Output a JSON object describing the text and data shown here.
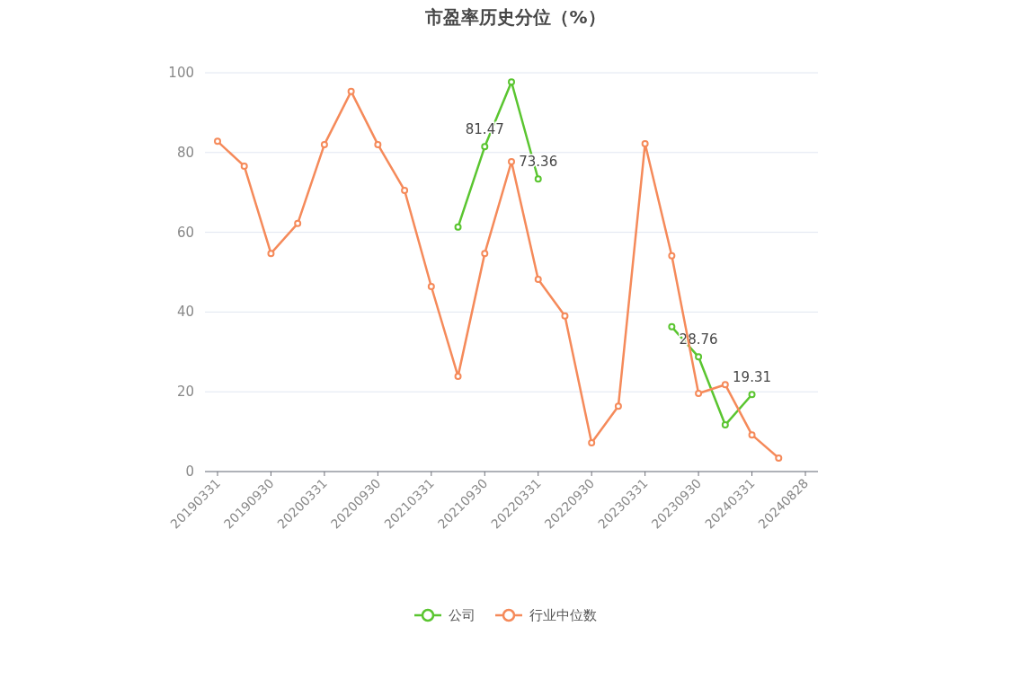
{
  "chart_data": {
    "type": "line",
    "title": "市盈率历史分位（%）",
    "categories": [
      "20190331",
      null,
      "20190930",
      null,
      "20200331",
      null,
      "20200930",
      null,
      "20210331",
      null,
      "20210930",
      null,
      "20220331",
      null,
      "20220930",
      null,
      "20230331",
      null,
      "20230930",
      null,
      "20240331",
      null,
      "20240828"
    ],
    "series": [
      {
        "name": "公司",
        "color": "#5ac530",
        "values": [
          null,
          null,
          null,
          null,
          null,
          null,
          null,
          null,
          null,
          61.3,
          81.47,
          97.7,
          73.36,
          null,
          null,
          null,
          null,
          36.3,
          28.76,
          11.7,
          19.31,
          null,
          null
        ],
        "value_labels": [
          null,
          null,
          null,
          null,
          null,
          null,
          null,
          null,
          null,
          null,
          "81.47",
          null,
          "73.36",
          null,
          null,
          null,
          null,
          null,
          "28.76",
          null,
          "19.31",
          null,
          null
        ]
      },
      {
        "name": "行业中位数",
        "color": "#f58a5a",
        "values": [
          82.8,
          76.6,
          54.7,
          62.2,
          82.0,
          95.3,
          82.0,
          70.5,
          46.4,
          23.9,
          54.7,
          77.7,
          48.2,
          39.0,
          7.2,
          16.4,
          82.2,
          54.1,
          19.6,
          21.8,
          9.2,
          3.4,
          null
        ]
      }
    ],
    "ylim": [
      0,
      100
    ],
    "yticks": [
      0,
      20,
      40,
      60,
      80,
      100
    ],
    "grid": "y",
    "legend": "bottom",
    "marker": "circle"
  }
}
